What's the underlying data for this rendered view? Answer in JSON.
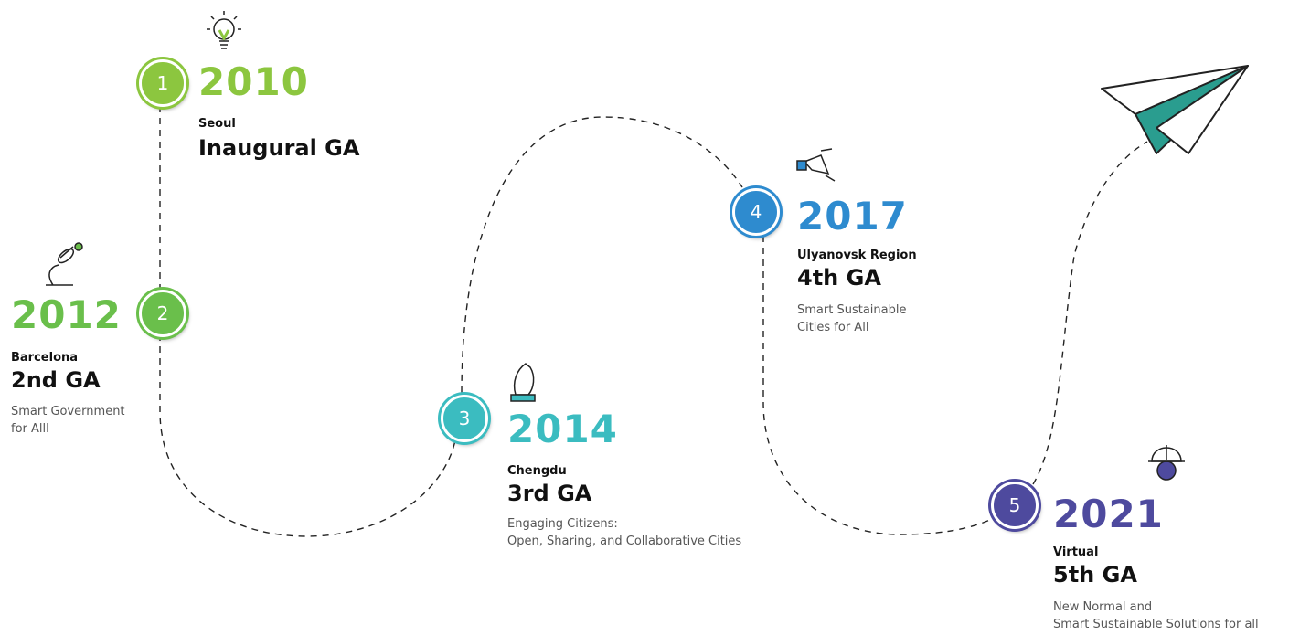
{
  "milestones": [
    {
      "number": "1",
      "year": "2010",
      "city": "Seoul",
      "edition": "Inaugural GA",
      "description": [],
      "color": "#8cc63f"
    },
    {
      "number": "2",
      "year": "2012",
      "city": "Barcelona",
      "edition": "2nd GA",
      "description": [
        "Smart Government",
        "for Alll"
      ],
      "color": "#6abf4b"
    },
    {
      "number": "3",
      "year": "2014",
      "city": "Chengdu",
      "edition": "3rd GA",
      "description": [
        "Engaging Citizens:",
        "Open, Sharing, and Collaborative Cities"
      ],
      "color": "#3bbcc0"
    },
    {
      "number": "4",
      "year": "2017",
      "city": "Ulyanovsk Region",
      "edition": "4th GA",
      "description": [
        "Smart Sustainable",
        "Cities for All"
      ],
      "color": "#2e8bcf"
    },
    {
      "number": "5",
      "year": "2021",
      "city": "Virtual",
      "edition": "5th GA",
      "description": [
        "New Normal and",
        "Smart Sustainable Solutions for all"
      ],
      "color": "#4e4a9e"
    }
  ]
}
